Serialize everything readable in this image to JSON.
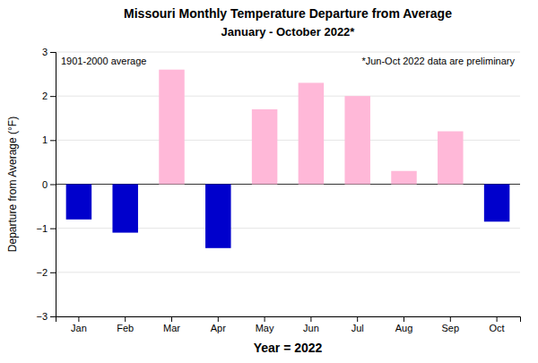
{
  "chart_data": {
    "type": "bar",
    "title": "Missouri Monthly Temperature Departure from Average",
    "subtitle": "January - October 2022*",
    "xlabel": "Year = 2022",
    "ylabel": "Departure from Average (°F)",
    "annotations": [
      "1901-2000 average",
      "*Jun-Oct 2022 data are preliminary"
    ],
    "categories": [
      "Jan",
      "Feb",
      "Mar",
      "Apr",
      "May",
      "Jun",
      "Jul",
      "Aug",
      "Sep",
      "Oct"
    ],
    "values": [
      -0.8,
      -1.1,
      2.6,
      -1.45,
      1.7,
      2.3,
      2.0,
      0.3,
      1.2,
      -0.85
    ],
    "colors": [
      "#0000cc",
      "#0000cc",
      "#ffb8d8",
      "#0000cc",
      "#ffb8d8",
      "#ffb8d8",
      "#ffb8d8",
      "#ffb8d8",
      "#ffb8d8",
      "#0000cc"
    ],
    "ylim": [
      -3.0,
      3.0
    ],
    "yticks": [
      -3.0,
      -2.0,
      -1.0,
      0.0,
      1.0,
      2.0,
      3.0
    ],
    "grid": true
  }
}
